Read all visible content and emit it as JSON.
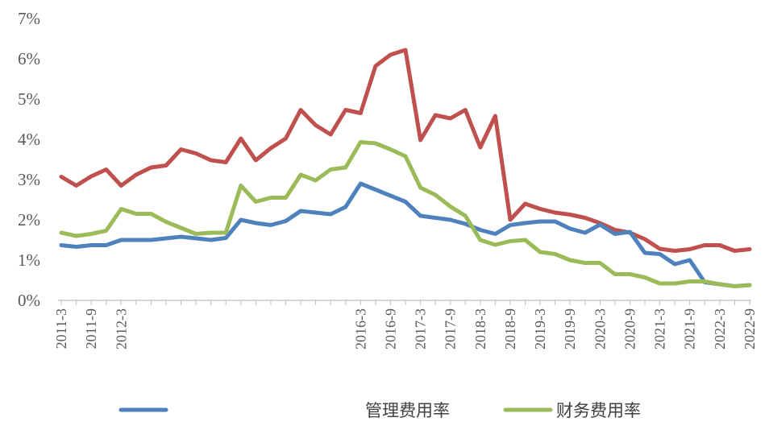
{
  "chart_data": {
    "type": "line",
    "title": "",
    "xlabel": "",
    "ylabel": "",
    "ylim": [
      0,
      7
    ],
    "yticks": [
      "0%",
      "1%",
      "2%",
      "3%",
      "4%",
      "5%",
      "6%",
      "7%"
    ],
    "grid": false,
    "legend_position": "bottom",
    "x": [
      "2011-3",
      "2011-6",
      "2011-9",
      "2011-12",
      "2012-3",
      "2012-6",
      "2012-9",
      "2012-12",
      "2013-3",
      "2013-6",
      "2013-9",
      "2013-12",
      "2014-3",
      "2014-6",
      "2014-9",
      "2014-12",
      "2015-3",
      "2015-6",
      "2015-9",
      "2015-12",
      "2016-3",
      "2016-6",
      "2016-9",
      "2016-12",
      "2017-3",
      "2017-6",
      "2017-9",
      "2017-12",
      "2018-3",
      "2018-6",
      "2018-9",
      "2018-12",
      "2019-3",
      "2019-6",
      "2019-9",
      "2019-12",
      "2020-3",
      "2020-6",
      "2020-9",
      "2020-12",
      "2021-3",
      "2021-6",
      "2021-9",
      "2021-12",
      "2022-3",
      "2022-6",
      "2022-9"
    ],
    "x_tick_labels": [
      {
        "index": 0,
        "label": "2011-3"
      },
      {
        "index": 2,
        "label": "2011-9"
      },
      {
        "index": 4,
        "label": "2012-3"
      },
      {
        "index": 20,
        "label": "2016-3"
      },
      {
        "index": 22,
        "label": "2016-9"
      },
      {
        "index": 24,
        "label": "2017-3"
      },
      {
        "index": 26,
        "label": "2017-9"
      },
      {
        "index": 28,
        "label": "2018-3"
      },
      {
        "index": 30,
        "label": "2018-9"
      },
      {
        "index": 32,
        "label": "2019-3"
      },
      {
        "index": 34,
        "label": "2019-9"
      },
      {
        "index": 36,
        "label": "2020-3"
      },
      {
        "index": 38,
        "label": "2020-9"
      },
      {
        "index": 40,
        "label": "2021-3"
      },
      {
        "index": 42,
        "label": "2021-9"
      },
      {
        "index": 44,
        "label": "2022-3"
      },
      {
        "index": 46,
        "label": "2022-9"
      }
    ],
    "series": [
      {
        "color": "#C0504D",
        "legend": "",
        "values": [
          3.07,
          2.85,
          3.08,
          3.25,
          2.85,
          3.12,
          3.3,
          3.35,
          3.75,
          3.65,
          3.48,
          3.43,
          4.02,
          3.48,
          3.78,
          4.02,
          4.73,
          4.35,
          4.12,
          4.73,
          4.65,
          5.82,
          6.1,
          6.22,
          3.98,
          4.6,
          4.52,
          4.73,
          3.8,
          4.58,
          2.0,
          2.4,
          2.27,
          2.18,
          2.13,
          2.05,
          1.92,
          1.75,
          1.68,
          1.52,
          1.28,
          1.23,
          1.27,
          1.37,
          1.37,
          1.23,
          1.27
        ]
      },
      {
        "color": "#4F81BD",
        "legend": "管理费用率",
        "values": [
          1.37,
          1.33,
          1.37,
          1.37,
          1.5,
          1.5,
          1.5,
          1.54,
          1.58,
          1.54,
          1.5,
          1.55,
          2.0,
          1.92,
          1.87,
          1.97,
          2.22,
          2.18,
          2.14,
          2.32,
          2.9,
          2.75,
          2.6,
          2.45,
          2.1,
          2.05,
          2.0,
          1.9,
          1.75,
          1.65,
          1.87,
          1.92,
          1.96,
          1.96,
          1.78,
          1.68,
          1.88,
          1.65,
          1.7,
          1.18,
          1.15,
          0.9,
          1.0,
          0.45,
          0.4,
          0.35,
          0.38
        ]
      },
      {
        "color": "#9BBB59",
        "legend": "财务费用率",
        "values": [
          1.68,
          1.6,
          1.65,
          1.73,
          2.27,
          2.15,
          2.15,
          1.95,
          1.8,
          1.65,
          1.68,
          1.68,
          2.85,
          2.45,
          2.55,
          2.55,
          3.12,
          2.98,
          3.25,
          3.3,
          3.93,
          3.9,
          3.75,
          3.58,
          2.8,
          2.62,
          2.33,
          2.1,
          1.5,
          1.38,
          1.47,
          1.5,
          1.2,
          1.15,
          1.0,
          0.93,
          0.93,
          0.65,
          0.65,
          0.57,
          0.42,
          0.42,
          0.47,
          0.47,
          0.4,
          0.35,
          0.38
        ]
      }
    ]
  }
}
